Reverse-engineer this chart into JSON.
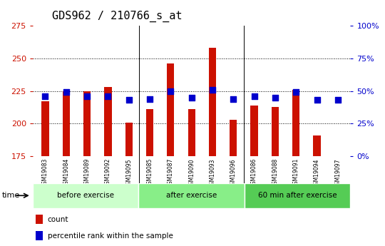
{
  "title": "GDS962 / 210766_s_at",
  "samples": [
    "GSM19083",
    "GSM19084",
    "GSM19089",
    "GSM19092",
    "GSM19095",
    "GSM19085",
    "GSM19087",
    "GSM19090",
    "GSM19093",
    "GSM19096",
    "GSM19086",
    "GSM19088",
    "GSM19091",
    "GSM19094",
    "GSM19097"
  ],
  "counts": [
    217,
    225,
    225,
    228,
    201,
    211,
    246,
    211,
    258,
    203,
    214,
    213,
    226,
    191,
    175
  ],
  "percentile_ranks": [
    46,
    49,
    46,
    46,
    43,
    44,
    50,
    45,
    51,
    44,
    46,
    45,
    49,
    43,
    43
  ],
  "groups": [
    "before exercise",
    "after exercise",
    "60 min after exercise"
  ],
  "group_sizes": [
    5,
    5,
    5
  ],
  "ylim_left": [
    175,
    275
  ],
  "ylim_right": [
    0,
    100
  ],
  "yticks_left": [
    175,
    200,
    225,
    250,
    275
  ],
  "yticks_right": [
    0,
    25,
    50,
    75,
    100
  ],
  "bar_color": "#cc1100",
  "dot_color": "#0000cc",
  "base_value": 175,
  "background_color": "#ffffff",
  "tick_area_color": "#c8c8c8",
  "group_colors": [
    "#ccffcc",
    "#88ee88",
    "#55cc55"
  ],
  "title_fontsize": 11,
  "axis_fontsize": 8,
  "sample_fontsize": 5.5,
  "group_fontsize": 7.5,
  "legend_fontsize": 7.5
}
